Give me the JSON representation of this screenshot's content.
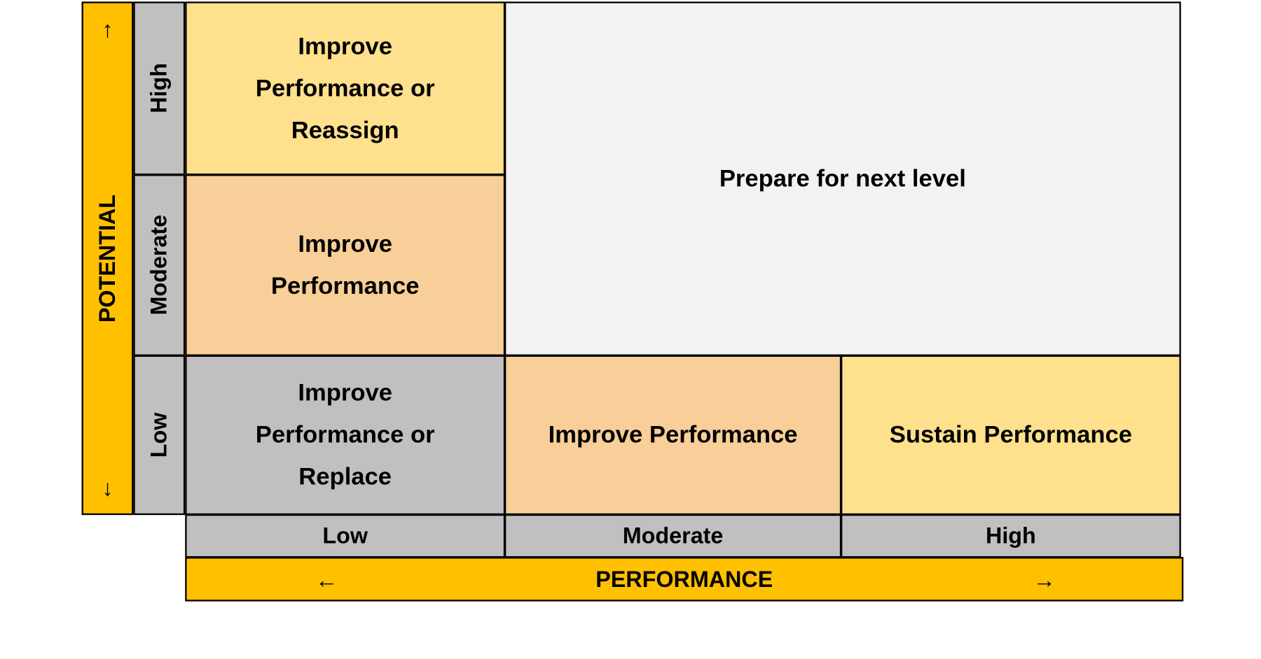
{
  "y_axis": {
    "title": "POTENTIAL",
    "arrow_up": "↑",
    "arrow_down": "↓",
    "levels": [
      "High",
      "Moderate",
      "Low"
    ]
  },
  "x_axis": {
    "title": "PERFORMANCE",
    "arrow_left": "←",
    "arrow_right": "→",
    "levels": [
      "Low",
      "Moderate",
      "High"
    ]
  },
  "cells": {
    "high_low": "Improve Performance or Reassign",
    "moderate_low": "Improve Performance",
    "top_right": "Prepare for next level",
    "low_low": "Improve Performance or Replace",
    "low_moderate": "Improve Performance",
    "low_high": "Sustain Performance"
  }
}
